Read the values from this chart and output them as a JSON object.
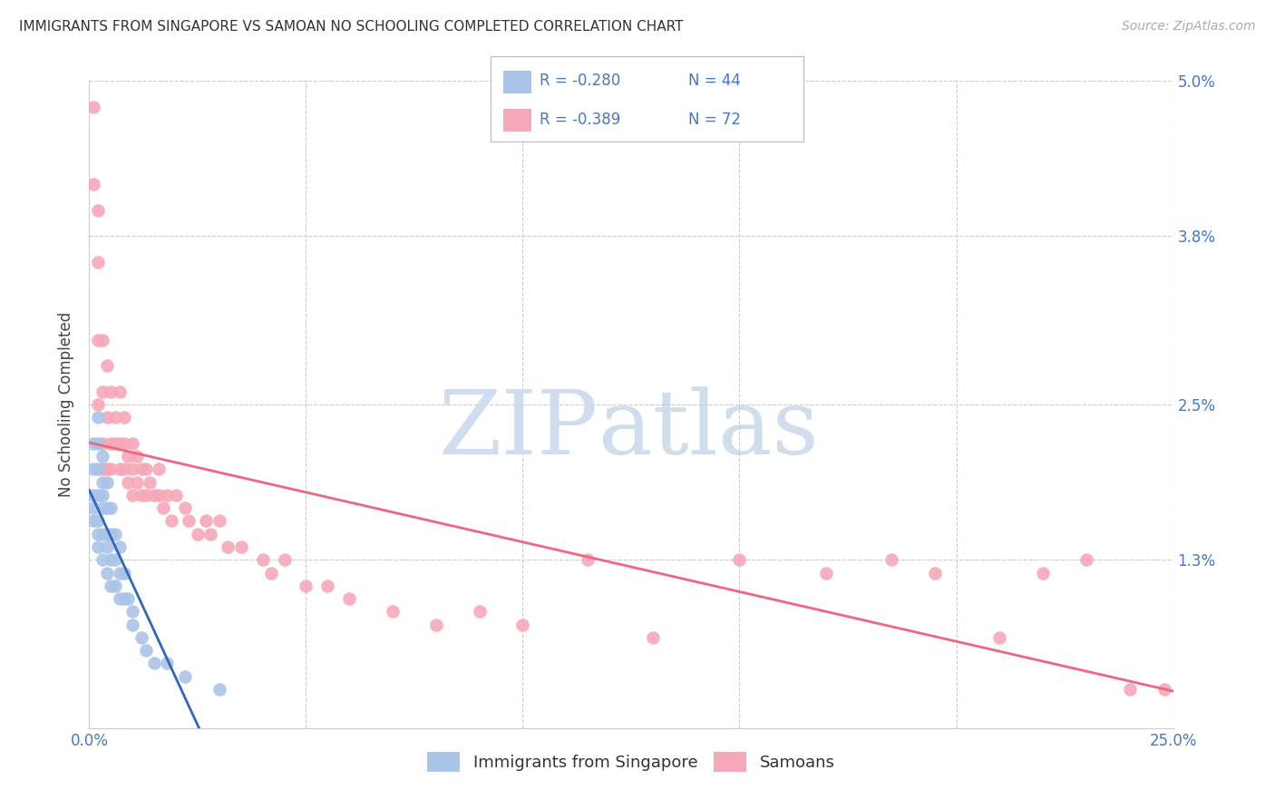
{
  "title": "IMMIGRANTS FROM SINGAPORE VS SAMOAN NO SCHOOLING COMPLETED CORRELATION CHART",
  "source": "Source: ZipAtlas.com",
  "ylabel": "No Schooling Completed",
  "xmin": 0.0,
  "xmax": 0.25,
  "ymin": 0.0,
  "ymax": 0.05,
  "ytick_positions": [
    0.0,
    0.013,
    0.025,
    0.038,
    0.05
  ],
  "right_yticklabels": [
    "",
    "1.3%",
    "2.5%",
    "3.8%",
    "5.0%"
  ],
  "xtick_positions": [
    0.0,
    0.05,
    0.1,
    0.15,
    0.2,
    0.25
  ],
  "legend_r1": "R = -0.280",
  "legend_n1": "N = 44",
  "legend_r2": "R = -0.389",
  "legend_n2": "N = 72",
  "legend_label1": "Immigrants from Singapore",
  "legend_label2": "Samoans",
  "color_singapore": "#aac4e8",
  "color_samoan": "#f5a8b8",
  "color_line_singapore": "#3366bb",
  "color_line_samoan": "#ee6680",
  "color_blue": "#4477cc",
  "watermark_zip": "ZIP",
  "watermark_atlas": "atlas",
  "singapore_x": [
    0.001,
    0.001,
    0.001,
    0.001,
    0.001,
    0.002,
    0.002,
    0.002,
    0.002,
    0.002,
    0.002,
    0.002,
    0.003,
    0.003,
    0.003,
    0.003,
    0.003,
    0.003,
    0.004,
    0.004,
    0.004,
    0.004,
    0.004,
    0.005,
    0.005,
    0.005,
    0.005,
    0.006,
    0.006,
    0.006,
    0.007,
    0.007,
    0.007,
    0.008,
    0.008,
    0.009,
    0.01,
    0.01,
    0.012,
    0.013,
    0.015,
    0.018,
    0.022,
    0.03
  ],
  "singapore_y": [
    0.022,
    0.02,
    0.018,
    0.017,
    0.016,
    0.024,
    0.022,
    0.02,
    0.018,
    0.016,
    0.015,
    0.014,
    0.021,
    0.019,
    0.018,
    0.017,
    0.015,
    0.013,
    0.019,
    0.017,
    0.015,
    0.014,
    0.012,
    0.017,
    0.015,
    0.013,
    0.011,
    0.015,
    0.013,
    0.011,
    0.014,
    0.012,
    0.01,
    0.012,
    0.01,
    0.01,
    0.009,
    0.008,
    0.007,
    0.006,
    0.005,
    0.005,
    0.004,
    0.003
  ],
  "samoan_x": [
    0.001,
    0.001,
    0.002,
    0.002,
    0.002,
    0.002,
    0.003,
    0.003,
    0.003,
    0.003,
    0.004,
    0.004,
    0.004,
    0.005,
    0.005,
    0.005,
    0.006,
    0.006,
    0.007,
    0.007,
    0.007,
    0.008,
    0.008,
    0.008,
    0.009,
    0.009,
    0.01,
    0.01,
    0.01,
    0.011,
    0.011,
    0.012,
    0.012,
    0.013,
    0.013,
    0.014,
    0.015,
    0.016,
    0.016,
    0.017,
    0.018,
    0.019,
    0.02,
    0.022,
    0.023,
    0.025,
    0.027,
    0.028,
    0.03,
    0.032,
    0.035,
    0.04,
    0.042,
    0.045,
    0.05,
    0.055,
    0.06,
    0.07,
    0.08,
    0.09,
    0.1,
    0.115,
    0.13,
    0.15,
    0.17,
    0.185,
    0.195,
    0.21,
    0.22,
    0.23,
    0.24,
    0.248
  ],
  "samoan_y": [
    0.048,
    0.042,
    0.04,
    0.036,
    0.03,
    0.025,
    0.03,
    0.026,
    0.022,
    0.02,
    0.028,
    0.024,
    0.02,
    0.026,
    0.022,
    0.02,
    0.024,
    0.022,
    0.026,
    0.022,
    0.02,
    0.024,
    0.022,
    0.02,
    0.021,
    0.019,
    0.022,
    0.02,
    0.018,
    0.021,
    0.019,
    0.02,
    0.018,
    0.02,
    0.018,
    0.019,
    0.018,
    0.018,
    0.02,
    0.017,
    0.018,
    0.016,
    0.018,
    0.017,
    0.016,
    0.015,
    0.016,
    0.015,
    0.016,
    0.014,
    0.014,
    0.013,
    0.012,
    0.013,
    0.011,
    0.011,
    0.01,
    0.009,
    0.008,
    0.009,
    0.008,
    0.013,
    0.007,
    0.013,
    0.012,
    0.013,
    0.012,
    0.007,
    0.012,
    0.013,
    0.003,
    0.003
  ]
}
